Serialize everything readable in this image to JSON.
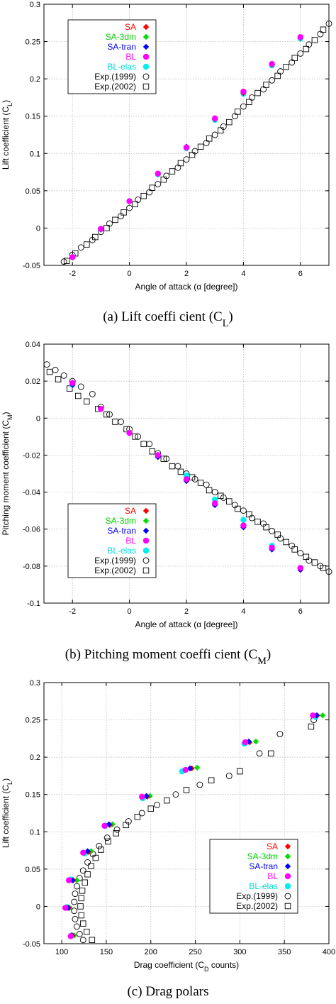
{
  "series_styles": [
    {
      "name": "SA",
      "color": "#ff0000",
      "marker": "diamond"
    },
    {
      "name": "SA-3dm",
      "color": "#00dd00",
      "marker": "diamond"
    },
    {
      "name": "SA-tran",
      "color": "#0000ff",
      "marker": "diamond"
    },
    {
      "name": "BL",
      "color": "#ff00ff",
      "marker": "circle"
    },
    {
      "name": "BL-elas",
      "color": "#00eeee",
      "marker": "circle"
    },
    {
      "name": "Exp.(1999)",
      "color": "#000000",
      "marker": "open-circle"
    },
    {
      "name": "Exp.(2002)",
      "color": "#000000",
      "marker": "open-square"
    }
  ],
  "chart_data": [
    {
      "type": "scatter",
      "caption": "(a) Lift coeffi cient (C",
      "caption_sub": "L",
      "caption_end": ")",
      "xlabel": "Angle of attack (α [degree])",
      "ylabel": "Lift coefficient (C",
      "ylabel_sub": "L",
      "ylabel_end": ")",
      "xlim": [
        -3,
        7
      ],
      "ylim": [
        -0.05,
        0.3
      ],
      "xticks": [
        "-2",
        "0",
        "2",
        "4",
        "6"
      ],
      "xtick_values": [
        -2,
        0,
        2,
        4,
        6
      ],
      "yticks": [
        "-0.05",
        "0",
        "0.05",
        "0.1",
        "0.15",
        "0.2",
        "0.25",
        "0.3"
      ],
      "ytick_values": [
        -0.05,
        0,
        0.05,
        0.1,
        0.15,
        0.2,
        0.25,
        0.3
      ],
      "grid": true,
      "legend_position": "top-left",
      "series": [
        {
          "name": "SA",
          "x": [
            -2,
            -1,
            0,
            1,
            2,
            3,
            4,
            5,
            6
          ],
          "y": [
            -0.039,
            -0.002,
            0.036,
            0.073,
            0.109,
            0.146,
            0.181,
            0.219,
            0.255
          ]
        },
        {
          "name": "SA-3dm",
          "x": [
            -2,
            -1,
            0,
            1,
            2,
            3,
            4,
            5,
            6
          ],
          "y": [
            -0.039,
            -0.002,
            0.036,
            0.073,
            0.109,
            0.146,
            0.181,
            0.219,
            0.256
          ]
        },
        {
          "name": "SA-tran",
          "x": [
            -2,
            -1,
            0,
            1,
            2,
            3,
            4,
            5,
            6
          ],
          "y": [
            -0.039,
            -0.002,
            0.036,
            0.073,
            0.109,
            0.147,
            0.182,
            0.22,
            0.256
          ]
        },
        {
          "name": "BL",
          "x": [
            -2,
            -1,
            0,
            1,
            2,
            3,
            4,
            5,
            6
          ],
          "y": [
            -0.039,
            -0.001,
            0.036,
            0.073,
            0.108,
            0.147,
            0.183,
            0.22,
            0.256
          ]
        },
        {
          "name": "BL-elas",
          "x": [
            -2,
            -1,
            0,
            1,
            2,
            3,
            4,
            5,
            6
          ],
          "y": [
            -0.039,
            -0.001,
            0.036,
            0.072,
            0.107,
            0.145,
            0.18,
            0.218,
            0.254
          ]
        },
        {
          "name": "Exp.(1999)",
          "x": [
            -2.3,
            -2.0,
            -1.7,
            -1.3,
            -1.0,
            -0.7,
            -0.3,
            0.0,
            0.3,
            0.7,
            1.0,
            1.3,
            1.7,
            2.0,
            2.3,
            2.7,
            3.0,
            3.3,
            3.7,
            4.0,
            4.3,
            4.7,
            5.0,
            5.3,
            5.7,
            6.0,
            6.3,
            6.7,
            7.0
          ],
          "y": [
            -0.045,
            -0.036,
            -0.026,
            -0.016,
            -0.005,
            0.006,
            0.016,
            0.027,
            0.038,
            0.048,
            0.059,
            0.07,
            0.081,
            0.092,
            0.103,
            0.114,
            0.125,
            0.136,
            0.15,
            0.163,
            0.175,
            0.186,
            0.198,
            0.21,
            0.222,
            0.234,
            0.246,
            0.26,
            0.274
          ]
        },
        {
          "name": "Exp.(2002)",
          "x": [
            -2.2,
            -1.9,
            -1.5,
            -1.2,
            -0.8,
            -0.5,
            -0.2,
            0.2,
            0.5,
            0.8,
            1.2,
            1.5,
            1.8,
            2.2,
            2.5,
            2.8,
            3.2,
            3.5,
            3.8,
            4.2,
            4.5,
            4.8,
            5.2,
            5.5,
            5.8,
            6.2,
            6.5,
            6.8
          ],
          "y": [
            -0.044,
            -0.034,
            -0.022,
            -0.012,
            0.0,
            0.011,
            0.021,
            0.032,
            0.043,
            0.054,
            0.065,
            0.076,
            0.087,
            0.098,
            0.109,
            0.12,
            0.131,
            0.142,
            0.156,
            0.169,
            0.181,
            0.192,
            0.204,
            0.216,
            0.228,
            0.24,
            0.252,
            0.266
          ]
        }
      ]
    },
    {
      "type": "scatter",
      "caption": "(b) Pitching moment coeffi cient (C",
      "caption_sub": "M",
      "caption_end": ")",
      "xlabel": "Angle of attack (α [degree])",
      "ylabel": "Pitching moment coefficient (C",
      "ylabel_sub": "M",
      "ylabel_end": ")",
      "xlim": [
        -3,
        7
      ],
      "ylim": [
        -0.1,
        0.04
      ],
      "xticks": [
        "-2",
        "0",
        "2",
        "4",
        "6"
      ],
      "xtick_values": [
        -2,
        0,
        2,
        4,
        6
      ],
      "yticks": [
        "-0.1",
        "-0.08",
        "-0.06",
        "-0.04",
        "-0.02",
        "0",
        "0.02",
        "0.04"
      ],
      "ytick_values": [
        -0.1,
        -0.08,
        -0.06,
        -0.04,
        -0.02,
        0,
        0.02,
        0.04
      ],
      "grid": true,
      "legend_position": "bottom-left",
      "series": [
        {
          "name": "SA",
          "x": [
            -2,
            -1,
            0,
            1,
            2,
            3,
            4,
            5,
            6
          ],
          "y": [
            0.018,
            0.005,
            -0.008,
            -0.021,
            -0.034,
            -0.047,
            -0.059,
            -0.071,
            -0.082
          ]
        },
        {
          "name": "SA-3dm",
          "x": [
            -2,
            -1,
            0,
            1,
            2,
            3,
            4,
            5,
            6
          ],
          "y": [
            0.018,
            0.005,
            -0.008,
            -0.021,
            -0.034,
            -0.047,
            -0.059,
            -0.071,
            -0.082
          ]
        },
        {
          "name": "SA-tran",
          "x": [
            -2,
            -1,
            0,
            1,
            2,
            3,
            4,
            5,
            6
          ],
          "y": [
            0.018,
            0.005,
            -0.008,
            -0.021,
            -0.034,
            -0.047,
            -0.059,
            -0.071,
            -0.082
          ]
        },
        {
          "name": "BL",
          "x": [
            -2,
            -1,
            0,
            1,
            2,
            3,
            4,
            5,
            6
          ],
          "y": [
            0.019,
            0.005,
            -0.008,
            -0.02,
            -0.033,
            -0.046,
            -0.058,
            -0.07,
            -0.081
          ]
        },
        {
          "name": "BL-elas",
          "x": [
            -2,
            -1,
            0,
            1,
            2,
            3,
            4,
            5,
            6
          ],
          "y": [
            0.018,
            0.005,
            -0.008,
            -0.02,
            -0.031,
            -0.044,
            -0.055,
            -0.069,
            -0.081
          ]
        },
        {
          "name": "Exp.(1999)",
          "x": [
            -2.9,
            -2.6,
            -2.3,
            -2.0,
            -1.7,
            -1.3,
            -1.0,
            -0.7,
            -0.3,
            0.0,
            0.3,
            0.7,
            1.0,
            1.3,
            1.7,
            2.0,
            2.3,
            2.7,
            3.0,
            3.3,
            3.7,
            4.0,
            4.3,
            4.7,
            5.0,
            5.3,
            5.7,
            6.0,
            6.3,
            6.7,
            7.0
          ],
          "y": [
            0.029,
            0.026,
            0.023,
            0.02,
            0.017,
            0.013,
            0.006,
            0.002,
            -0.002,
            -0.006,
            -0.01,
            -0.014,
            -0.019,
            -0.022,
            -0.026,
            -0.03,
            -0.033,
            -0.036,
            -0.04,
            -0.043,
            -0.047,
            -0.05,
            -0.054,
            -0.057,
            -0.061,
            -0.065,
            -0.069,
            -0.073,
            -0.077,
            -0.08,
            -0.083
          ]
        },
        {
          "name": "Exp.(2002)",
          "x": [
            -2.8,
            -2.5,
            -2.1,
            -1.8,
            -1.5,
            -1.1,
            -0.8,
            -0.5,
            -0.1,
            0.2,
            0.5,
            0.8,
            1.2,
            1.5,
            1.8,
            2.2,
            2.5,
            2.8,
            3.2,
            3.5,
            3.8,
            4.2,
            4.5,
            4.8,
            5.2,
            5.5,
            5.8,
            6.2,
            6.5,
            6.8
          ],
          "y": [
            0.025,
            0.021,
            0.016,
            0.012,
            0.009,
            0.005,
            0.002,
            -0.002,
            -0.006,
            -0.01,
            -0.014,
            -0.018,
            -0.022,
            -0.026,
            -0.029,
            -0.032,
            -0.035,
            -0.039,
            -0.042,
            -0.045,
            -0.049,
            -0.052,
            -0.056,
            -0.059,
            -0.063,
            -0.067,
            -0.071,
            -0.075,
            -0.078,
            -0.081
          ]
        }
      ]
    },
    {
      "type": "scatter",
      "caption": "(c) Drag polars",
      "caption_sub": "",
      "caption_end": "",
      "xlabel": "Drag coefficient (C",
      "xlabel_sub": "D",
      "xlabel_end": " counts)",
      "ylabel": "Lift coefficient (C",
      "ylabel_sub": "L",
      "ylabel_end": ")",
      "xlim": [
        80,
        400
      ],
      "ylim": [
        -0.05,
        0.3
      ],
      "xticks": [
        "100",
        "150",
        "200",
        "250",
        "300",
        "350",
        "400"
      ],
      "xtick_values": [
        100,
        150,
        200,
        250,
        300,
        350,
        400
      ],
      "yticks": [
        "-0.05",
        "0",
        "0.05",
        "0.1",
        "0.15",
        "0.2",
        "0.25",
        "0.3"
      ],
      "ytick_values": [
        -0.05,
        0,
        0.05,
        0.1,
        0.15,
        0.2,
        0.25,
        0.3
      ],
      "grid": true,
      "legend_position": "bottom-right",
      "series": [
        {
          "name": "SA",
          "x": [
            112,
            108,
            113,
            130,
            154,
            196,
            246,
            311,
            387
          ],
          "y": [
            -0.039,
            -0.002,
            0.035,
            0.073,
            0.109,
            0.147,
            0.185,
            0.22,
            0.256
          ]
        },
        {
          "name": "SA-3dm",
          "x": [
            114,
            109,
            117,
            133,
            157,
            199,
            252,
            318,
            393
          ],
          "y": [
            -0.039,
            -0.002,
            0.035,
            0.074,
            0.11,
            0.148,
            0.186,
            0.221,
            0.256
          ]
        },
        {
          "name": "SA-tran",
          "x": [
            111,
            107,
            112,
            129,
            153,
            195,
            244,
            310,
            386
          ],
          "y": [
            -0.039,
            -0.002,
            0.035,
            0.074,
            0.11,
            0.148,
            0.185,
            0.221,
            0.256
          ]
        },
        {
          "name": "BL",
          "x": [
            110,
            104,
            108,
            124,
            148,
            190,
            239,
            306,
            382
          ],
          "y": [
            -0.04,
            -0.002,
            0.035,
            0.072,
            0.108,
            0.147,
            0.183,
            0.22,
            0.256
          ]
        },
        {
          "name": "BL-elas",
          "x": [
            111,
            106,
            110,
            126,
            149,
            191,
            235,
            305,
            385
          ],
          "y": [
            -0.039,
            -0.001,
            0.036,
            0.071,
            0.108,
            0.145,
            0.181,
            0.218,
            0.254
          ]
        },
        {
          "name": "Exp.(1999)",
          "x": [
            124,
            120,
            117,
            115,
            114,
            114,
            115,
            117,
            120,
            124,
            129,
            135,
            142,
            151,
            162,
            175,
            190,
            207,
            228,
            255,
            288,
            322,
            345,
            383
          ],
          "y": [
            -0.045,
            -0.037,
            -0.027,
            -0.017,
            -0.006,
            0.006,
            0.017,
            0.027,
            0.038,
            0.048,
            0.059,
            0.07,
            0.081,
            0.092,
            0.103,
            0.114,
            0.125,
            0.136,
            0.15,
            0.163,
            0.175,
            0.205,
            0.231,
            0.25
          ]
        },
        {
          "name": "Exp.(2002)",
          "x": [
            134,
            128,
            124,
            122,
            121,
            122,
            123,
            126,
            129,
            133,
            138,
            144,
            152,
            161,
            172,
            185,
            200,
            218,
            240,
            268,
            300,
            335,
            380
          ],
          "y": [
            -0.045,
            -0.034,
            -0.023,
            -0.012,
            0.0,
            0.011,
            0.021,
            0.032,
            0.043,
            0.054,
            0.065,
            0.076,
            0.087,
            0.098,
            0.109,
            0.12,
            0.131,
            0.142,
            0.156,
            0.169,
            0.181,
            0.205,
            0.241
          ]
        }
      ]
    }
  ]
}
